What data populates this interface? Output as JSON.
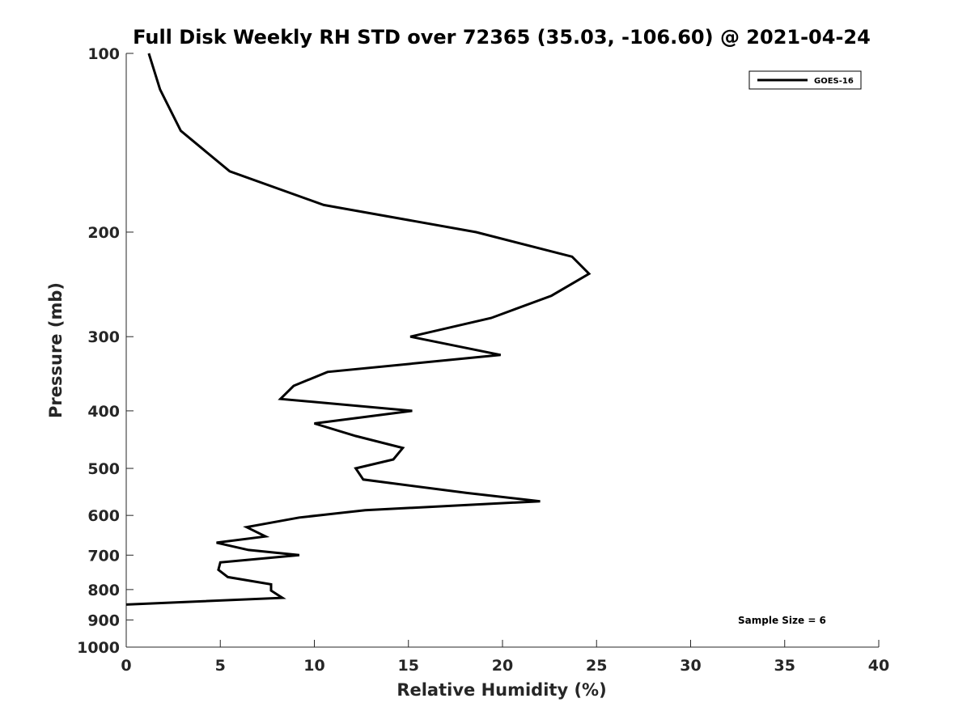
{
  "chart_data": {
    "type": "line",
    "title": "Full Disk Weekly RH STD over 72365 (35.03, -106.60) @ 2021-04-24",
    "xlabel": "Relative Humidity (%)",
    "ylabel": "Pressure (mb)",
    "xlim": [
      0,
      40
    ],
    "ylim": [
      100,
      1000
    ],
    "y_scale": "log",
    "y_reversed": true,
    "x_ticks": [
      "0",
      "5",
      "10",
      "15",
      "20",
      "25",
      "30",
      "35",
      "40"
    ],
    "y_ticks": [
      "100",
      "200",
      "300",
      "400",
      "500",
      "600",
      "700",
      "800",
      "900",
      "1000"
    ],
    "grid": false,
    "legend_position": "top-right",
    "series": [
      {
        "name": "GOES-16",
        "color": "#000000",
        "points": [
          [
            1.2,
            100
          ],
          [
            1.8,
            115
          ],
          [
            2.9,
            135
          ],
          [
            5.5,
            158
          ],
          [
            10.5,
            180
          ],
          [
            18.6,
            200
          ],
          [
            23.7,
            220
          ],
          [
            24.6,
            235
          ],
          [
            22.6,
            256
          ],
          [
            19.4,
            279
          ],
          [
            15.1,
            300
          ],
          [
            19.9,
            322
          ],
          [
            10.7,
            344
          ],
          [
            8.9,
            363
          ],
          [
            8.2,
            382
          ],
          [
            15.2,
            400
          ],
          [
            10.0,
            420
          ],
          [
            12.2,
            441
          ],
          [
            14.7,
            462
          ],
          [
            14.2,
            483
          ],
          [
            12.2,
            500
          ],
          [
            12.6,
            522
          ],
          [
            18.1,
            550
          ],
          [
            22.0,
            568
          ],
          [
            12.7,
            588
          ],
          [
            9.2,
            605
          ],
          [
            6.4,
            628
          ],
          [
            7.4,
            651
          ],
          [
            4.8,
            667
          ],
          [
            6.5,
            686
          ],
          [
            9.2,
            700
          ],
          [
            5.0,
            720
          ],
          [
            4.9,
            741
          ],
          [
            5.4,
            762
          ],
          [
            7.7,
            784
          ],
          [
            7.7,
            803
          ],
          [
            8.3,
            826
          ],
          [
            0.0,
            848
          ]
        ]
      }
    ],
    "annotations": [
      "Sample Size = 6"
    ]
  }
}
